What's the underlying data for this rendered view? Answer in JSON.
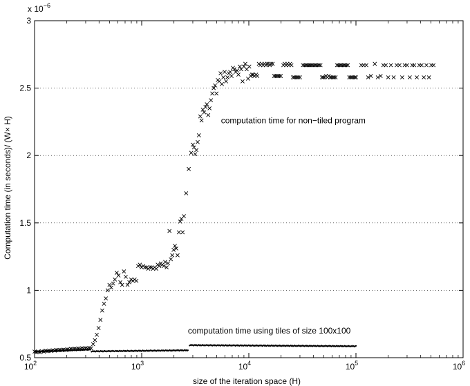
{
  "chart_data": {
    "type": "scatter",
    "xlabel": "size of the iteration space (H)",
    "ylabel": "Computation time (in seconds)/ (W× H)",
    "y_multiplier": "x 10",
    "y_multiplier_exp": "−6",
    "xscale": "log",
    "xlim": [
      100,
      1000000
    ],
    "ylim": [
      0.5,
      3
    ],
    "grid": "horizontal-dotted",
    "x_ticks": [
      {
        "base": "10",
        "exp": "2",
        "value": 100
      },
      {
        "base": "10",
        "exp": "3",
        "value": 1000
      },
      {
        "base": "10",
        "exp": "4",
        "value": 10000
      },
      {
        "base": "10",
        "exp": "5",
        "value": 100000
      },
      {
        "base": "10",
        "exp": "6",
        "value": 1000000
      }
    ],
    "y_ticks": [
      "0.5",
      "1",
      "1.5",
      "2",
      "2.5",
      "3"
    ],
    "annotations": [
      {
        "text": "computation time for non−tiled program",
        "x": 5500,
        "y": 2.24
      },
      {
        "text": "computation time using tiles of size 100x100",
        "x": 2700,
        "y": 0.68
      }
    ],
    "series": [
      {
        "marker": "x",
        "points": [
          [
            100,
            0.545
          ],
          [
            104,
            0.54
          ],
          [
            108,
            0.545
          ],
          [
            112,
            0.54
          ],
          [
            117,
            0.548
          ],
          [
            122,
            0.545
          ],
          [
            127,
            0.552
          ],
          [
            132,
            0.548
          ],
          [
            137,
            0.553
          ],
          [
            143,
            0.55
          ],
          [
            148,
            0.555
          ],
          [
            154,
            0.552
          ],
          [
            160,
            0.558
          ],
          [
            166,
            0.555
          ],
          [
            173,
            0.558
          ],
          [
            180,
            0.556
          ],
          [
            187,
            0.56
          ],
          [
            195,
            0.558
          ],
          [
            203,
            0.562
          ],
          [
            211,
            0.56
          ],
          [
            219,
            0.565
          ],
          [
            228,
            0.563
          ],
          [
            237,
            0.567
          ],
          [
            246,
            0.565
          ],
          [
            256,
            0.568
          ],
          [
            266,
            0.566
          ],
          [
            277,
            0.57
          ],
          [
            288,
            0.568
          ],
          [
            300,
            0.571
          ],
          [
            312,
            0.569
          ],
          [
            325,
            0.572
          ],
          [
            338,
            0.57
          ],
          [
            352,
            0.6
          ],
          [
            366,
            0.63
          ],
          [
            381,
            0.67
          ],
          [
            396,
            0.72
          ],
          [
            412,
            0.78
          ],
          [
            428,
            0.85
          ],
          [
            445,
            0.9
          ],
          [
            463,
            0.94
          ],
          [
            481,
            1.0
          ],
          [
            500,
            1.04
          ],
          [
            520,
            1.02
          ],
          [
            541,
            1.05
          ],
          [
            562,
            1.08
          ],
          [
            585,
            1.13
          ],
          [
            608,
            1.11
          ],
          [
            632,
            1.06
          ],
          [
            657,
            1.04
          ],
          [
            683,
            1.14
          ],
          [
            710,
            1.1
          ],
          [
            738,
            1.04
          ],
          [
            767,
            1.06
          ],
          [
            797,
            1.08
          ],
          [
            828,
            1.07
          ],
          [
            860,
            1.08
          ],
          [
            893,
            1.07
          ],
          [
            927,
            1.18
          ],
          [
            962,
            1.19
          ],
          [
            998,
            1.17
          ],
          [
            1035,
            1.18
          ],
          [
            1073,
            1.17
          ],
          [
            1112,
            1.17
          ],
          [
            1152,
            1.16
          ],
          [
            1193,
            1.17
          ],
          [
            1235,
            1.17
          ],
          [
            1278,
            1.16
          ],
          [
            1322,
            1.17
          ],
          [
            1367,
            1.16
          ],
          [
            1413,
            1.19
          ],
          [
            1460,
            1.18
          ],
          [
            1508,
            1.2
          ],
          [
            1557,
            1.19
          ],
          [
            1607,
            1.18
          ],
          [
            1658,
            1.21
          ],
          [
            1710,
            1.17
          ],
          [
            1763,
            1.2
          ],
          [
            1817,
            1.44
          ],
          [
            1872,
            1.23
          ],
          [
            1928,
            1.26
          ],
          [
            1985,
            1.3
          ],
          [
            2043,
            1.33
          ],
          [
            2102,
            1.31
          ],
          [
            2162,
            1.26
          ],
          [
            2223,
            1.43
          ],
          [
            2285,
            1.51
          ],
          [
            2348,
            1.53
          ],
          [
            2412,
            1.43
          ],
          [
            2477,
            1.55
          ],
          [
            2600,
            1.72
          ],
          [
            2750,
            1.9
          ],
          [
            2900,
            2.02
          ],
          [
            3000,
            2.08
          ],
          [
            3080,
            2.06
          ],
          [
            3160,
            2.01
          ],
          [
            3240,
            2.04
          ],
          [
            3330,
            2.1
          ],
          [
            3420,
            2.15
          ],
          [
            3520,
            2.29
          ],
          [
            3620,
            2.26
          ],
          [
            3720,
            2.34
          ],
          [
            3830,
            2.32
          ],
          [
            3940,
            2.36
          ],
          [
            4060,
            2.38
          ],
          [
            4180,
            2.3
          ],
          [
            4300,
            2.35
          ],
          [
            4430,
            2.41
          ],
          [
            4560,
            2.46
          ],
          [
            4700,
            2.5
          ],
          [
            4840,
            2.52
          ],
          [
            4990,
            2.46
          ],
          [
            5140,
            2.56
          ],
          [
            5290,
            2.55
          ],
          [
            5450,
            2.61
          ],
          [
            5610,
            2.53
          ],
          [
            5780,
            2.58
          ],
          [
            5950,
            2.62
          ],
          [
            6130,
            2.55
          ],
          [
            6320,
            2.58
          ],
          [
            6510,
            2.61
          ],
          [
            6700,
            2.62
          ],
          [
            6900,
            2.59
          ],
          [
            7110,
            2.65
          ],
          [
            7320,
            2.64
          ],
          [
            7540,
            2.62
          ],
          [
            7770,
            2.63
          ],
          [
            8000,
            2.6
          ],
          [
            8240,
            2.66
          ],
          [
            8490,
            2.64
          ],
          [
            8740,
            2.55
          ],
          [
            9000,
            2.66
          ],
          [
            9270,
            2.68
          ],
          [
            9550,
            2.64
          ],
          [
            9840,
            2.57
          ],
          [
            10100,
            2.66
          ],
          [
            10400,
            2.59
          ],
          [
            10700,
            2.6
          ],
          [
            11000,
            2.6
          ],
          [
            11300,
            2.59
          ],
          [
            11700,
            2.6
          ],
          [
            12000,
            2.59
          ],
          [
            12400,
            2.68
          ],
          [
            12800,
            2.67
          ],
          [
            13200,
            2.68
          ],
          [
            13600,
            2.67
          ],
          [
            14000,
            2.68
          ],
          [
            14400,
            2.67
          ],
          [
            14800,
            2.68
          ],
          [
            15300,
            2.68
          ],
          [
            15700,
            2.67
          ],
          [
            16200,
            2.68
          ],
          [
            16700,
            2.68
          ],
          [
            17200,
            2.59
          ],
          [
            17700,
            2.59
          ],
          [
            18200,
            2.59
          ],
          [
            18800,
            2.59
          ],
          [
            19300,
            2.59
          ],
          [
            19900,
            2.59
          ],
          [
            21000,
            2.67
          ],
          [
            21600,
            2.68
          ],
          [
            22300,
            2.67
          ],
          [
            22900,
            2.68
          ],
          [
            23600,
            2.67
          ],
          [
            24300,
            2.68
          ],
          [
            25000,
            2.67
          ],
          [
            25800,
            2.58
          ],
          [
            26600,
            2.58
          ],
          [
            27400,
            2.58
          ],
          [
            28200,
            2.58
          ],
          [
            29000,
            2.58
          ],
          [
            30000,
            2.58
          ],
          [
            32000,
            2.67
          ],
          [
            33000,
            2.67
          ],
          [
            34000,
            2.67
          ],
          [
            35000,
            2.67
          ],
          [
            36000,
            2.67
          ],
          [
            37000,
            2.67
          ],
          [
            38000,
            2.67
          ],
          [
            39100,
            2.67
          ],
          [
            40300,
            2.67
          ],
          [
            41500,
            2.67
          ],
          [
            42700,
            2.67
          ],
          [
            44000,
            2.67
          ],
          [
            45300,
            2.67
          ],
          [
            46700,
            2.67
          ],
          [
            48100,
            2.58
          ],
          [
            49500,
            2.58
          ],
          [
            51000,
            2.58
          ],
          [
            52500,
            2.59
          ],
          [
            54100,
            2.58
          ],
          [
            55700,
            2.59
          ],
          [
            57400,
            2.58
          ],
          [
            59100,
            2.58
          ],
          [
            60900,
            2.58
          ],
          [
            62700,
            2.58
          ],
          [
            64600,
            2.58
          ],
          [
            66500,
            2.67
          ],
          [
            68500,
            2.67
          ],
          [
            70500,
            2.67
          ],
          [
            72600,
            2.67
          ],
          [
            74800,
            2.67
          ],
          [
            77000,
            2.67
          ],
          [
            79300,
            2.67
          ],
          [
            81700,
            2.67
          ],
          [
            84100,
            2.67
          ],
          [
            86600,
            2.58
          ],
          [
            89200,
            2.58
          ],
          [
            91900,
            2.58
          ],
          [
            94700,
            2.58
          ],
          [
            97500,
            2.58
          ],
          [
            100000,
            2.58
          ],
          [
            112000,
            2.67
          ],
          [
            118000,
            2.67
          ],
          [
            125000,
            2.67
          ],
          [
            130000,
            2.58
          ],
          [
            138000,
            2.59
          ],
          [
            150000,
            2.68
          ],
          [
            160000,
            2.58
          ],
          [
            170000,
            2.59
          ],
          [
            180000,
            2.67
          ],
          [
            190000,
            2.67
          ],
          [
            200000,
            2.58
          ],
          [
            212000,
            2.67
          ],
          [
            225000,
            2.58
          ],
          [
            240000,
            2.67
          ],
          [
            255000,
            2.67
          ],
          [
            270000,
            2.58
          ],
          [
            285000,
            2.67
          ],
          [
            300000,
            2.67
          ],
          [
            318000,
            2.58
          ],
          [
            335000,
            2.67
          ],
          [
            350000,
            2.67
          ],
          [
            370000,
            2.58
          ],
          [
            390000,
            2.67
          ],
          [
            410000,
            2.67
          ],
          [
            430000,
            2.58
          ],
          [
            455000,
            2.67
          ],
          [
            480000,
            2.58
          ],
          [
            505000,
            2.67
          ],
          [
            530000,
            2.67
          ]
        ]
      },
      {
        "marker": "dot",
        "x_ranges": [
          {
            "from": 100,
            "to": 330,
            "y_start": 0.545,
            "y_end": 0.56
          },
          {
            "from": 340,
            "to": 2700,
            "y_start": 0.547,
            "y_end": 0.555
          },
          {
            "from": 2800,
            "to": 100000,
            "y_start": 0.593,
            "y_end": 0.585
          }
        ]
      }
    ]
  }
}
